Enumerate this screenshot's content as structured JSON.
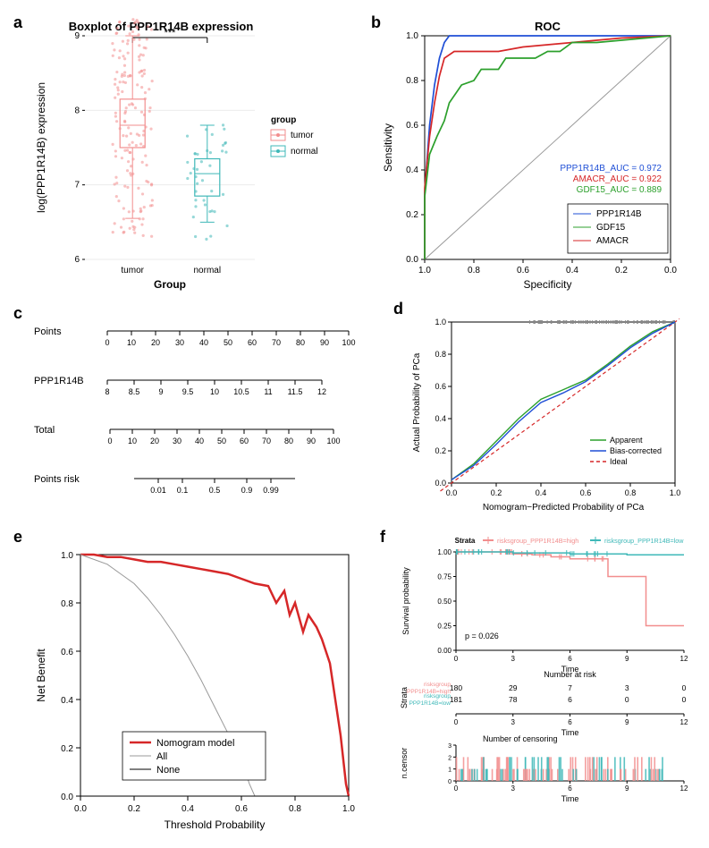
{
  "panel_a": {
    "label": "a",
    "title": "Boxplot of PPP1R14B expression",
    "xlabel": "Group",
    "ylabel": "log(PPP1R14B) expression",
    "ylim": [
      6,
      9
    ],
    "yticks": [
      6,
      7,
      8,
      9
    ],
    "groups": [
      "tumor",
      "normal"
    ],
    "significance": "***",
    "legend_title": "group",
    "legend_items": [
      "tumor",
      "normal"
    ],
    "colors": {
      "tumor": "#f28e8e",
      "normal": "#3fb8b8"
    },
    "boxes": {
      "tumor": {
        "min": 6.55,
        "q1": 7.5,
        "med": 7.8,
        "q3": 8.15,
        "max": 9.0
      },
      "normal": {
        "min": 6.5,
        "q1": 6.85,
        "med": 7.15,
        "q3": 7.35,
        "max": 7.8
      }
    },
    "title_fontsize": 13,
    "label_fontsize": 12,
    "tick_fontsize": 10,
    "background": "#ffffff",
    "panel_bg": "#ffffff",
    "grid": "#ebebeb"
  },
  "panel_b": {
    "label": "b",
    "title": "ROC",
    "xlabel": "Specificity",
    "ylabel": "Sensitivity",
    "xlim": [
      1,
      0
    ],
    "ylim": [
      0,
      1
    ],
    "xticks": [
      1.0,
      0.8,
      0.6,
      0.4,
      0.2,
      0.0
    ],
    "yticks": [
      0.0,
      0.2,
      0.4,
      0.6,
      0.8,
      1.0
    ],
    "diag_color": "#999999",
    "auc_labels": [
      {
        "text": "GDF15_AUC =  0.889",
        "color": "#2ca02c"
      },
      {
        "text": "AMACR_AUC =  0.922",
        "color": "#d62728"
      },
      {
        "text": "PPP1R14B_AUC =  0.972",
        "color": "#1f4fd6"
      }
    ],
    "legend_items": [
      {
        "text": "PPP1R14B",
        "color": "#1f4fd6"
      },
      {
        "text": "GDF15",
        "color": "#2ca02c"
      },
      {
        "text": "AMACR",
        "color": "#d62728"
      }
    ],
    "curves": {
      "PPP1R14B": {
        "color": "#1f4fd6",
        "pts": [
          [
            1,
            0.0
          ],
          [
            1,
            0.3
          ],
          [
            0.98,
            0.6
          ],
          [
            0.96,
            0.78
          ],
          [
            0.94,
            0.9
          ],
          [
            0.92,
            0.97
          ],
          [
            0.9,
            1.0
          ],
          [
            0.0,
            1.0
          ]
        ]
      },
      "AMACR": {
        "color": "#d62728",
        "pts": [
          [
            1,
            0.0
          ],
          [
            1,
            0.32
          ],
          [
            0.98,
            0.55
          ],
          [
            0.96,
            0.7
          ],
          [
            0.94,
            0.82
          ],
          [
            0.92,
            0.9
          ],
          [
            0.88,
            0.93
          ],
          [
            0.8,
            0.93
          ],
          [
            0.7,
            0.93
          ],
          [
            0.6,
            0.95
          ],
          [
            0.4,
            0.97
          ],
          [
            0.2,
            0.99
          ],
          [
            0.0,
            1.0
          ]
        ]
      },
      "GDF15": {
        "color": "#2ca02c",
        "pts": [
          [
            1,
            0.0
          ],
          [
            1,
            0.28
          ],
          [
            0.98,
            0.47
          ],
          [
            0.95,
            0.55
          ],
          [
            0.92,
            0.62
          ],
          [
            0.9,
            0.7
          ],
          [
            0.85,
            0.78
          ],
          [
            0.8,
            0.8
          ],
          [
            0.77,
            0.85
          ],
          [
            0.7,
            0.85
          ],
          [
            0.67,
            0.9
          ],
          [
            0.6,
            0.9
          ],
          [
            0.55,
            0.9
          ],
          [
            0.5,
            0.93
          ],
          [
            0.45,
            0.93
          ],
          [
            0.4,
            0.97
          ],
          [
            0.3,
            0.97
          ],
          [
            0.2,
            0.98
          ],
          [
            0.1,
            0.99
          ],
          [
            0.0,
            1.0
          ]
        ]
      }
    },
    "title_fontsize": 13,
    "label_fontsize": 12,
    "tick_fontsize": 10
  },
  "panel_c": {
    "label": "c",
    "rows": [
      {
        "label": "Points",
        "min": 0,
        "max": 100,
        "ticks": [
          0,
          10,
          20,
          30,
          40,
          50,
          60,
          70,
          80,
          90,
          100
        ]
      },
      {
        "label": "PPP1R14B",
        "min": 8,
        "max": 12,
        "ticks": [
          8,
          8.5,
          9,
          9.5,
          10,
          10.5,
          11,
          11.5,
          12
        ]
      },
      {
        "label": "Total",
        "min": 0,
        "max": 100,
        "ticks": [
          0,
          10,
          20,
          30,
          40,
          50,
          60,
          70,
          80,
          90,
          100
        ]
      },
      {
        "label": "Points risk",
        "min": 0.01,
        "max": 0.99,
        "ticks": [
          0.01,
          0.1,
          0.5,
          0.9,
          0.99
        ],
        "positions": [
          0.15,
          0.3,
          0.5,
          0.7,
          0.85
        ]
      }
    ],
    "label_fontsize": 11,
    "tick_fontsize": 9
  },
  "panel_d": {
    "label": "d",
    "xlabel": "Nomogram−Predicted Probability of PCa",
    "ylabel": "Actual Probability of PCa",
    "xlim": [
      0,
      1
    ],
    "ylim": [
      0,
      1
    ],
    "ticks": [
      0.0,
      0.2,
      0.4,
      0.6,
      0.8,
      1.0
    ],
    "legend_items": [
      {
        "text": "Apparent",
        "color": "#2ca02c"
      },
      {
        "text": "Bias-corrected",
        "color": "#1f4fd6"
      },
      {
        "text": "Ideal",
        "color": "#d62728"
      }
    ],
    "ideal": {
      "color": "#d62728",
      "dash": "4,3",
      "pts": [
        [
          -0.05,
          -0.05
        ],
        [
          1.02,
          1.02
        ]
      ]
    },
    "apparent": {
      "color": "#2ca02c",
      "pts": [
        [
          0.0,
          0.02
        ],
        [
          0.1,
          0.12
        ],
        [
          0.2,
          0.26
        ],
        [
          0.3,
          0.4
        ],
        [
          0.4,
          0.52
        ],
        [
          0.5,
          0.58
        ],
        [
          0.6,
          0.64
        ],
        [
          0.7,
          0.74
        ],
        [
          0.8,
          0.85
        ],
        [
          0.9,
          0.94
        ],
        [
          1.0,
          1.0
        ]
      ]
    },
    "bias": {
      "color": "#1f4fd6",
      "pts": [
        [
          0.0,
          0.02
        ],
        [
          0.1,
          0.11
        ],
        [
          0.2,
          0.24
        ],
        [
          0.3,
          0.38
        ],
        [
          0.4,
          0.5
        ],
        [
          0.5,
          0.56
        ],
        [
          0.6,
          0.63
        ],
        [
          0.7,
          0.73
        ],
        [
          0.8,
          0.84
        ],
        [
          0.9,
          0.93
        ],
        [
          1.0,
          1.0
        ]
      ]
    },
    "rug_color": "#888888",
    "label_fontsize": 10,
    "tick_fontsize": 9
  },
  "panel_e": {
    "label": "e",
    "xlabel": "Threshold Probability",
    "ylabel": "Net Benefit",
    "xlim": [
      0,
      1
    ],
    "ylim": [
      0,
      1
    ],
    "xticks": [
      0.0,
      0.2,
      0.4,
      0.6,
      0.8,
      1.0
    ],
    "yticks": [
      0.0,
      0.2,
      0.4,
      0.6,
      0.8,
      1.0
    ],
    "legend_items": [
      {
        "text": "Nomogram model",
        "color": "#d62728",
        "lw": 2.5
      },
      {
        "text": "All",
        "color": "#999999",
        "lw": 1
      },
      {
        "text": "None",
        "color": "#000000",
        "lw": 1
      }
    ],
    "curves": {
      "model": {
        "color": "#d62728",
        "lw": 2.5,
        "pts": [
          [
            0,
            1.0
          ],
          [
            0.05,
            1.0
          ],
          [
            0.1,
            0.99
          ],
          [
            0.15,
            0.99
          ],
          [
            0.2,
            0.98
          ],
          [
            0.25,
            0.97
          ],
          [
            0.3,
            0.97
          ],
          [
            0.35,
            0.96
          ],
          [
            0.4,
            0.95
          ],
          [
            0.45,
            0.94
          ],
          [
            0.5,
            0.93
          ],
          [
            0.55,
            0.92
          ],
          [
            0.6,
            0.9
          ],
          [
            0.65,
            0.88
          ],
          [
            0.7,
            0.87
          ],
          [
            0.73,
            0.8
          ],
          [
            0.76,
            0.85
          ],
          [
            0.78,
            0.75
          ],
          [
            0.8,
            0.8
          ],
          [
            0.83,
            0.68
          ],
          [
            0.85,
            0.75
          ],
          [
            0.88,
            0.7
          ],
          [
            0.9,
            0.65
          ],
          [
            0.93,
            0.55
          ],
          [
            0.95,
            0.4
          ],
          [
            0.97,
            0.25
          ],
          [
            0.99,
            0.05
          ],
          [
            1.0,
            0.0
          ]
        ]
      },
      "all": {
        "color": "#999999",
        "lw": 1,
        "pts": [
          [
            0,
            1.0
          ],
          [
            0.05,
            0.98
          ],
          [
            0.1,
            0.96
          ],
          [
            0.15,
            0.92
          ],
          [
            0.2,
            0.88
          ],
          [
            0.25,
            0.82
          ],
          [
            0.3,
            0.75
          ],
          [
            0.35,
            0.67
          ],
          [
            0.4,
            0.58
          ],
          [
            0.45,
            0.48
          ],
          [
            0.5,
            0.37
          ],
          [
            0.55,
            0.26
          ],
          [
            0.6,
            0.15
          ],
          [
            0.63,
            0.05
          ],
          [
            0.65,
            0.0
          ]
        ]
      },
      "none": {
        "color": "#000000",
        "lw": 1,
        "pts": [
          [
            0,
            0
          ],
          [
            1,
            0
          ]
        ]
      }
    },
    "label_fontsize": 12,
    "tick_fontsize": 10
  },
  "panel_f": {
    "label": "f",
    "strata_label": "Strata",
    "strata_items": [
      {
        "text": "risksgroup_PPP1R14B=high",
        "color": "#f28e8e"
      },
      {
        "text": "risksgroup_PPP1R14B=low",
        "color": "#3fb8b8"
      }
    ],
    "survival": {
      "ylabel": "Survival probability",
      "xlabel": "Time",
      "xlim": [
        0,
        12
      ],
      "ylim": [
        0,
        1
      ],
      "xticks": [
        0,
        3,
        6,
        9,
        12
      ],
      "yticks": [
        0.0,
        0.25,
        0.5,
        0.75,
        1.0
      ],
      "pvalue": "p = 0.026",
      "curves": {
        "high": {
          "color": "#f28e8e",
          "pts": [
            [
              0,
              1.0
            ],
            [
              2,
              1.0
            ],
            [
              3,
              0.98
            ],
            [
              4,
              0.97
            ],
            [
              5,
              0.95
            ],
            [
              6,
              0.93
            ],
            [
              7,
              0.93
            ],
            [
              8,
              0.75
            ],
            [
              9,
              0.75
            ],
            [
              10,
              0.25
            ],
            [
              12,
              0.25
            ]
          ]
        },
        "low": {
          "color": "#3fb8b8",
          "pts": [
            [
              0,
              1.0
            ],
            [
              3,
              0.99
            ],
            [
              6,
              0.98
            ],
            [
              9,
              0.97
            ],
            [
              12,
              0.97
            ]
          ]
        }
      }
    },
    "risk_table": {
      "title": "Number at risk",
      "xlabel": "Time",
      "rows": [
        {
          "label": "risksgroup\nPPP1R14B=high",
          "color": "#f28e8e",
          "values": [
            180,
            29,
            7,
            3,
            0
          ]
        },
        {
          "label": "risksgroup\nPPP1R14B=low",
          "color": "#3fb8b8",
          "values": [
            181,
            78,
            6,
            0,
            0
          ]
        }
      ],
      "xticks": [
        0,
        3,
        6,
        9,
        12
      ]
    },
    "censor": {
      "title": "Number of censoring",
      "ylabel": "n.censor",
      "xlabel": "Time",
      "ylim": [
        0,
        3
      ],
      "yticks": [
        0,
        1,
        2,
        3
      ],
      "xticks": [
        0,
        3,
        6,
        9,
        12
      ]
    },
    "tick_fontsize": 8,
    "label_fontsize": 9
  }
}
